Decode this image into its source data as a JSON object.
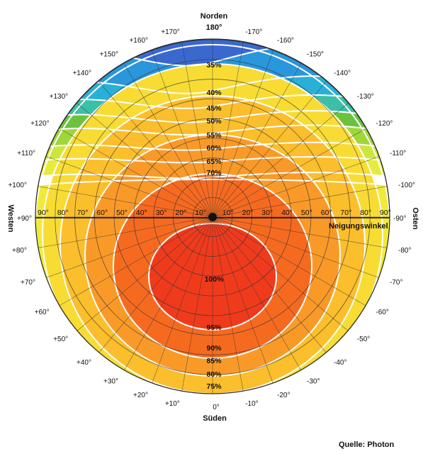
{
  "compass": {
    "north_label": "Norden",
    "north_deg": "180°",
    "south_label": "Süden",
    "south_deg": "0°",
    "west_label": "Westen",
    "west_deg": "+90°",
    "east_label": "Osten",
    "east_deg": "-90°"
  },
  "azimuth_labels": {
    "top_west": [
      "+170°",
      "+160°",
      "+150°",
      "+140°",
      "+130°",
      "+120°",
      "+110°",
      "+100°"
    ],
    "top_east": [
      "-170°",
      "-160°",
      "-150°",
      "-140°",
      "-130°",
      "-120°",
      "-110°",
      "-100°"
    ],
    "bottom_west": [
      "+80°",
      "+70°",
      "+60°",
      "+50°",
      "+40°",
      "+30°",
      "+20°",
      "+10°"
    ],
    "bottom_east": [
      "-80°",
      "-70°",
      "-60°",
      "-50°",
      "-40°",
      "-30°",
      "-20°",
      "-10°"
    ]
  },
  "tilt_axis": {
    "label": "Neigungswinkel",
    "ticks_left": [
      "90°",
      "80°",
      "70°",
      "60°",
      "50°",
      "40°",
      "30°",
      "20°",
      "10°"
    ],
    "ticks_right": [
      "10°",
      "20°",
      "30°",
      "40°",
      "50°",
      "60°",
      "70°",
      "80°",
      "90°"
    ]
  },
  "percent_labels_north": [
    "35%",
    "40%",
    "45%",
    "50%",
    "55%",
    "60%",
    "65%",
    "70%"
  ],
  "percent_labels_south": [
    "100%",
    "95%",
    "90%",
    "85%",
    "80%",
    "75%"
  ],
  "source": "Quelle: Photon",
  "colors": {
    "p100": "#f03a1c",
    "p95": "#f66a20",
    "p90": "#f99a28",
    "p85": "#fbbe2c",
    "p80": "#f8dc34",
    "p75": "#f2ea38",
    "p70": "#e6ec3c",
    "p65": "#cde63c",
    "p60": "#9fd63c",
    "p55": "#6cc23e",
    "p50": "#3bbfa6",
    "p45": "#2ab0d8",
    "p40": "#2a96dc",
    "p35": "#3a68cf"
  }
}
